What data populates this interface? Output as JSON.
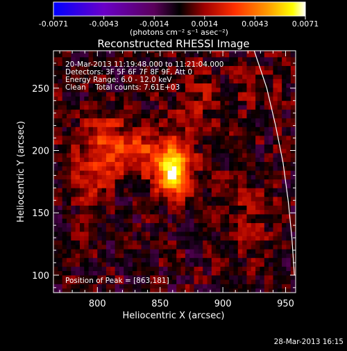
{
  "chart_data": {
    "type": "heatmap",
    "title": "Reconstructed RHESSI Image",
    "xlabel": "Heliocentric X (arcsec)",
    "ylabel": "Heliocentric Y (arcsec)",
    "xlim": [
      765,
      958
    ],
    "ylim": [
      86,
      280
    ],
    "x_ticks": [
      800,
      850,
      900,
      950
    ],
    "y_ticks": [
      100,
      150,
      200,
      250
    ],
    "colorbar": {
      "min": -0.0071,
      "max": 0.0071,
      "ticks": [
        "-0.0071",
        "-0.0043",
        "-0.0014",
        "0.0014",
        "0.0043",
        "0.0071"
      ],
      "units_label": "(photons cm⁻² s⁻¹ asec⁻²)",
      "colormap": [
        "#0000ff",
        "#6a00c8",
        "#5a005a",
        "#000000",
        "#a00000",
        "#ff3000",
        "#ff9a00",
        "#ffff00",
        "#ffffff"
      ]
    },
    "annotations": [
      "20-Mar-2013 11:19:48.000 to 11:21:04.000",
      "Detectors: 3F 5F 6F 7F 8F 9F, Att 0",
      "Energy Range: 6.0 - 12.0 keV",
      "Clean    Total counts: 7.61E+03"
    ],
    "peak_label": "Position of Peak = [863,181]",
    "peak": {
      "x": 863,
      "y": 181,
      "value": 0.0071
    },
    "sources": [
      {
        "x": 861,
        "y": 183,
        "amp": 1.0,
        "sx": 9,
        "sy": 14
      },
      {
        "x": 830,
        "y": 200,
        "amp": 0.32,
        "sx": 22,
        "sy": 14
      },
      {
        "x": 803,
        "y": 205,
        "amp": 0.22,
        "sx": 18,
        "sy": 18
      },
      {
        "x": 790,
        "y": 170,
        "amp": 0.17,
        "sx": 14,
        "sy": 14
      },
      {
        "x": 880,
        "y": 240,
        "amp": 0.18,
        "sx": 16,
        "sy": 18
      },
      {
        "x": 920,
        "y": 140,
        "amp": 0.16,
        "sx": 18,
        "sy": 22
      },
      {
        "x": 930,
        "y": 250,
        "amp": 0.14,
        "sx": 14,
        "sy": 14
      }
    ],
    "limb_curve": [
      [
        925,
        280
      ],
      [
        935,
        250
      ],
      [
        942,
        220
      ],
      [
        948,
        190
      ],
      [
        952,
        160
      ],
      [
        955,
        130
      ],
      [
        957,
        100
      ]
    ]
  },
  "footer": {
    "date": "28-Mar-2013 16:15"
  }
}
